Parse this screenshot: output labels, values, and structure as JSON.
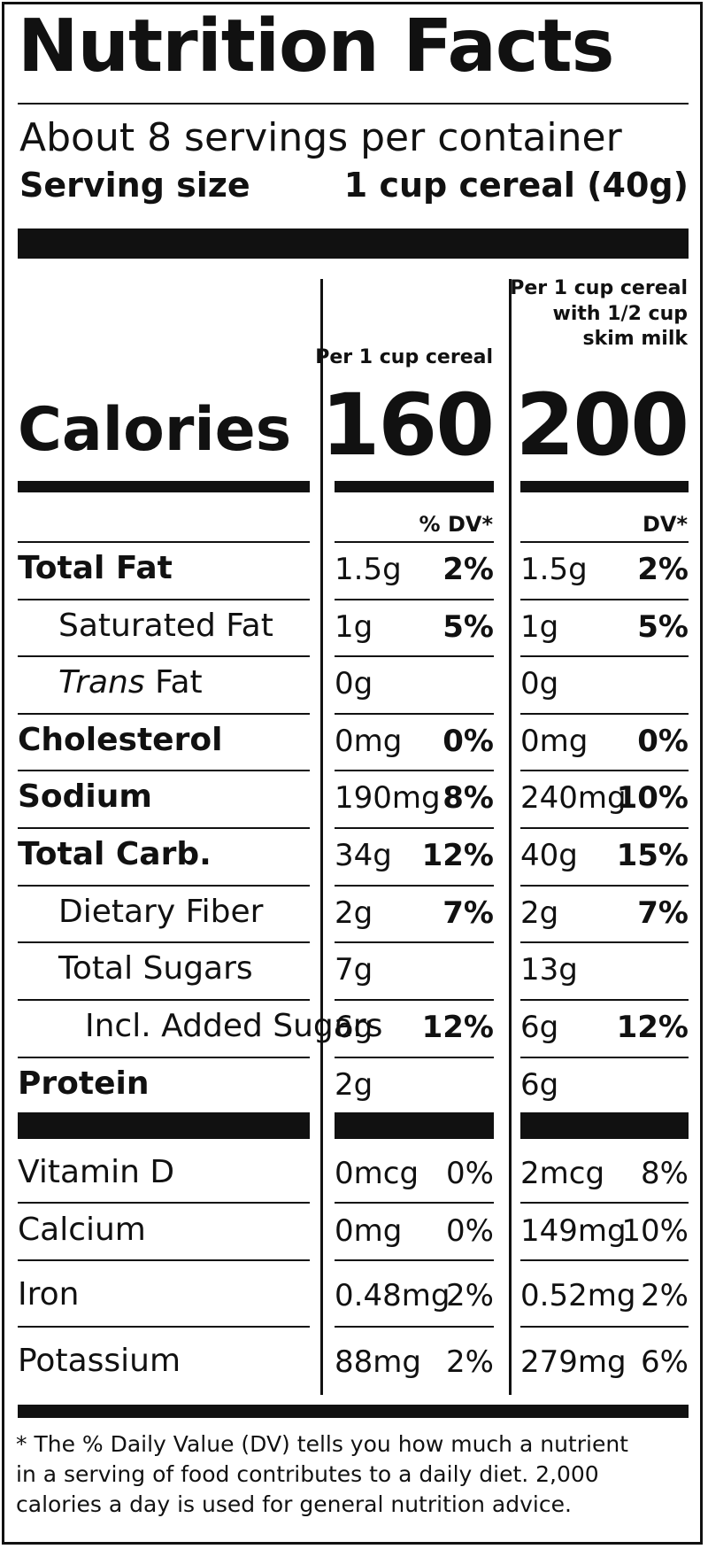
{
  "title": "Nutrition Facts",
  "servings_per_container": "About 8 servings per container",
  "serving_size_label": "Serving size",
  "serving_size_value": "1 cup cereal (40g)",
  "columns": [
    {
      "header_lines": [
        "Per 1 cup cereal"
      ],
      "calories": "160",
      "dv_header": "% DV*"
    },
    {
      "header_lines": [
        "Per 1 cup  cereal",
        "with 1/2 cup",
        "skim milk"
      ],
      "calories": "200",
      "dv_header": "DV*"
    }
  ],
  "calories_label": "Calories",
  "nutrients": [
    {
      "label": "Total Fat",
      "c1_amt": "1.5g",
      "c1_dv": "2%",
      "c2_amt": "1.5g",
      "c2_dv": "2%"
    },
    {
      "label": "Saturated Fat",
      "c1_amt": "1g",
      "c1_dv": "5%",
      "c2_amt": "1g",
      "c2_dv": "5%"
    },
    {
      "label_italic": "Trans",
      "label_rest": " Fat",
      "c1_amt": "0g",
      "c1_dv": "",
      "c2_amt": "0g",
      "c2_dv": ""
    },
    {
      "label": "Cholesterol",
      "c1_amt": "0mg",
      "c1_dv": "0%",
      "c2_amt": "0mg",
      "c2_dv": "0%"
    },
    {
      "label": "Sodium",
      "c1_amt": "190mg",
      "c1_dv": "8%",
      "c2_amt": "240mg",
      "c2_dv": "10%"
    },
    {
      "label": "Total Carb.",
      "c1_amt": "34g",
      "c1_dv": "12%",
      "c2_amt": "40g",
      "c2_dv": "15%"
    },
    {
      "label": "Dietary Fiber",
      "c1_amt": "2g",
      "c1_dv": "7%",
      "c2_amt": "2g",
      "c2_dv": "7%"
    },
    {
      "label": "Total Sugars",
      "c1_amt": "7g",
      "c1_dv": "",
      "c2_amt": "13g",
      "c2_dv": ""
    },
    {
      "label": "Incl. Added Sugars",
      "c1_amt": "6g",
      "c1_dv": "12%",
      "c2_amt": "6g",
      "c2_dv": "12%"
    },
    {
      "label": "Protein",
      "c1_amt": "2g",
      "c1_dv": "",
      "c2_amt": "6g",
      "c2_dv": ""
    }
  ],
  "vitamins": [
    {
      "label": "Vitamin D",
      "c1_amt": "0mcg",
      "c1_dv": "0%",
      "c2_amt": "2mcg",
      "c2_dv": "8%"
    },
    {
      "label": "Calcium",
      "c1_amt": "0mg",
      "c1_dv": "0%",
      "c2_amt": "149mg",
      "c2_dv": "10%"
    },
    {
      "label": "Iron",
      "c1_amt": "0.48mg",
      "c1_dv": "2%",
      "c2_amt": "0.52mg",
      "c2_dv": "2%"
    },
    {
      "label": "Potassium",
      "c1_amt": "88mg",
      "c1_dv": "2%",
      "c2_amt": "279mg",
      "c2_dv": "6%"
    }
  ],
  "footnote": "* The % Daily Value (DV) tells you how much a nutrient in a serving of food contributes to a daily diet. 2,000 calories a day is used for general nutrition advice."
}
